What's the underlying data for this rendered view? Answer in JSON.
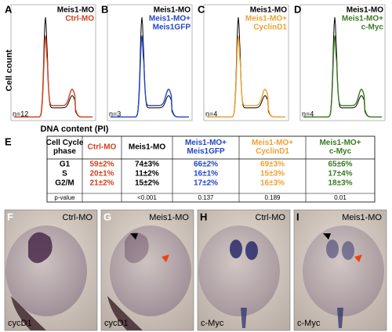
{
  "histograms": {
    "y_axis_label": "Cell count",
    "x_axis_label": "DNA content (PI)",
    "panels": [
      {
        "letter": "A",
        "legend": [
          "Meis1-MO",
          "Ctrl-MO"
        ],
        "color": "#d2401c",
        "n": "n=12"
      },
      {
        "letter": "B",
        "legend": [
          "Meis1-MO",
          "Meis1-MO+",
          "Meis1GFP"
        ],
        "color": "#2446c6",
        "n": "n=3"
      },
      {
        "letter": "C",
        "legend": [
          "Meis1-MO",
          "Meis1-MO+",
          "CyclinD1"
        ],
        "color": "#f0a030",
        "n": "n=4"
      },
      {
        "letter": "D",
        "legend": [
          "Meis1-MO",
          "Meis1-MO+",
          "c-Myc"
        ],
        "color": "#3a7a22",
        "n": "n=4"
      }
    ]
  },
  "table": {
    "letter": "E",
    "header": [
      [
        "Cell Cycle",
        "phase"
      ],
      [
        "Ctrl-MO"
      ],
      [
        "Meis1-MO"
      ],
      [
        "Meis1-MO+",
        "Meis1GFP"
      ],
      [
        "Meis1-MO+",
        "CyclinD1"
      ],
      [
        "Meis1-MO+",
        "c-Myc"
      ]
    ],
    "colors": [
      "#000000",
      "#d2401c",
      "#000000",
      "#2446c6",
      "#f0a030",
      "#3a7a22"
    ],
    "rows": [
      [
        "G1",
        "59±2%",
        "74±3%",
        "66±2%",
        "69±3%",
        "65±6%"
      ],
      [
        "S",
        "20±1%",
        "11±2%",
        "16±1%",
        "15±3%",
        "17±4%"
      ],
      [
        "G2/M",
        "21±2%",
        "15±2%",
        "17±2%",
        "16±3%",
        "18±3%"
      ],
      [
        "p-value",
        "",
        "<0.001",
        "0.137",
        "0.189",
        "0.01"
      ]
    ]
  },
  "photos": [
    {
      "letter": "F",
      "condition": "Ctrl-MO",
      "marker": "cycD1"
    },
    {
      "letter": "G",
      "condition": "Meis1-MO",
      "marker": "cycD1"
    },
    {
      "letter": "H",
      "condition": "Ctrl-MO",
      "marker": "c-Myc"
    },
    {
      "letter": "I",
      "condition": "Meis1-MO",
      "marker": "c-Myc"
    }
  ]
}
